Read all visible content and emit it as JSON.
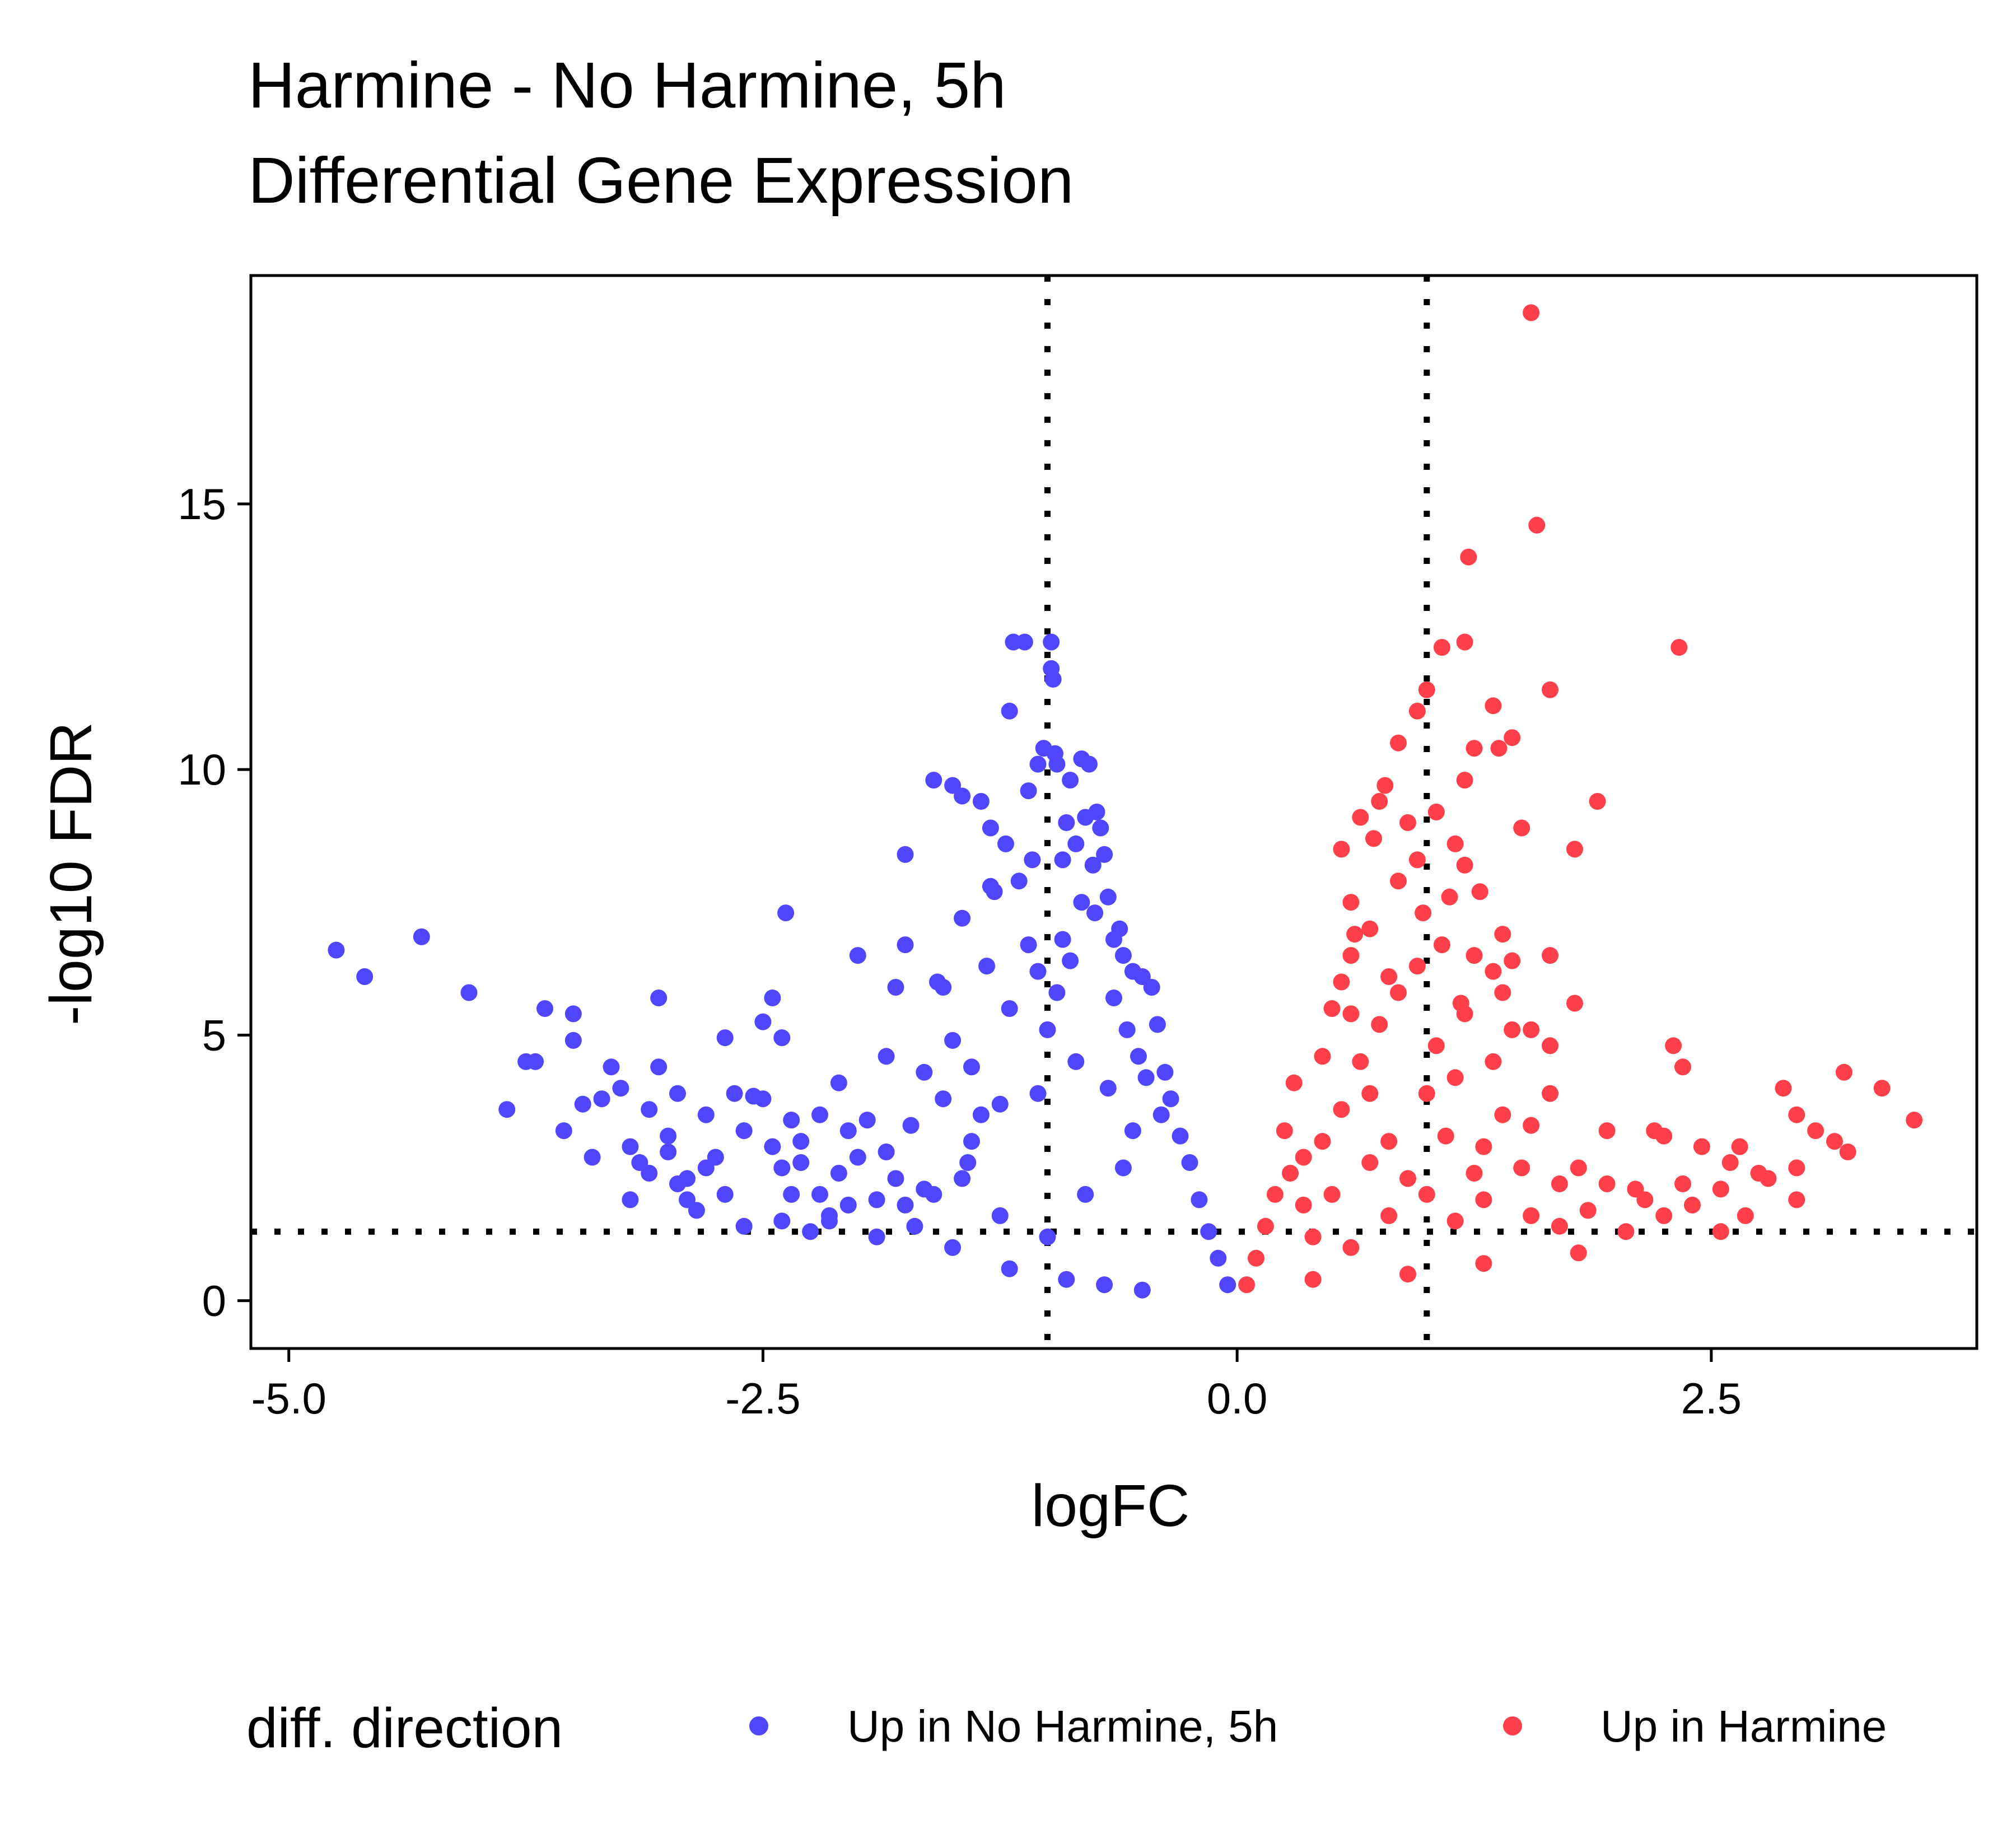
{
  "chart_data": {
    "type": "scatter",
    "title": [
      "Harmine - No Harmine, 5h",
      "Differential Gene Expression"
    ],
    "xlabel": "logFC",
    "ylabel": "-log10 FDR",
    "xlim": [
      -5.2,
      3.9
    ],
    "ylim": [
      -0.9,
      19.3
    ],
    "x_ticks": [
      -5.0,
      -2.5,
      0.0,
      2.5
    ],
    "x_tick_labels": [
      "-5.0",
      "-2.5",
      "0.0",
      "2.5"
    ],
    "y_ticks": [
      0,
      5,
      10,
      15
    ],
    "y_tick_labels": [
      "0",
      "5",
      "10",
      "15"
    ],
    "grid": false,
    "reference_lines": {
      "vertical": [
        -1,
        1
      ],
      "horizontal": [
        1.3
      ],
      "style": "dotted"
    },
    "legend": {
      "title": "diff. direction",
      "position": "bottom",
      "entries": [
        "Up in No Harmine, 5h",
        "Up in Harmine"
      ]
    },
    "colors": {
      "Up in No Harmine, 5h": "#5046ff",
      "Up in Harmine": "#ff3f4a"
    },
    "series": [
      {
        "name": "Up in No Harmine, 5h",
        "points": [
          [
            -4.75,
            6.6
          ],
          [
            -4.6,
            6.1
          ],
          [
            -4.3,
            6.85
          ],
          [
            -4.05,
            5.8
          ],
          [
            -3.85,
            3.6
          ],
          [
            -3.75,
            4.5
          ],
          [
            -3.7,
            4.5
          ],
          [
            -3.65,
            5.5
          ],
          [
            -3.55,
            3.2
          ],
          [
            -3.5,
            4.9
          ],
          [
            -3.5,
            5.4
          ],
          [
            -3.45,
            3.7
          ],
          [
            -3.4,
            2.7
          ],
          [
            -3.35,
            3.8
          ],
          [
            -3.3,
            4.4
          ],
          [
            -3.25,
            4.0
          ],
          [
            -3.2,
            1.9
          ],
          [
            -3.15,
            2.6
          ],
          [
            -3.1,
            3.6
          ],
          [
            -3.1,
            2.4
          ],
          [
            -3.05,
            5.7
          ],
          [
            -3.05,
            4.4
          ],
          [
            -3.0,
            3.1
          ],
          [
            -3.0,
            2.8
          ],
          [
            -2.95,
            3.9
          ],
          [
            -2.95,
            2.2
          ],
          [
            -2.9,
            1.9
          ],
          [
            -2.9,
            2.3
          ],
          [
            -2.85,
            1.7
          ],
          [
            -2.8,
            3.5
          ],
          [
            -2.75,
            2.7
          ],
          [
            -2.7,
            4.95
          ],
          [
            -2.65,
            3.9
          ],
          [
            -2.6,
            3.2
          ],
          [
            -2.55,
            3.85
          ],
          [
            -2.5,
            3.8
          ],
          [
            -2.5,
            5.25
          ],
          [
            -2.45,
            5.7
          ],
          [
            -2.45,
            2.9
          ],
          [
            -2.4,
            1.5
          ],
          [
            -2.4,
            2.5
          ],
          [
            -2.38,
            7.3
          ],
          [
            -2.4,
            4.95
          ],
          [
            -2.35,
            3.4
          ],
          [
            -2.35,
            2.0
          ],
          [
            -2.3,
            2.6
          ],
          [
            -2.3,
            3.0
          ],
          [
            -2.25,
            1.3
          ],
          [
            -2.2,
            2.0
          ],
          [
            -2.2,
            3.5
          ],
          [
            -2.15,
            1.6
          ],
          [
            -2.1,
            2.4
          ],
          [
            -2.1,
            4.1
          ],
          [
            -2.05,
            3.2
          ],
          [
            -2.05,
            1.8
          ],
          [
            -2.0,
            2.7
          ],
          [
            -2.0,
            6.5
          ],
          [
            -1.95,
            3.4
          ],
          [
            -1.9,
            1.9
          ],
          [
            -1.85,
            4.6
          ],
          [
            -1.85,
            2.8
          ],
          [
            -1.8,
            5.9
          ],
          [
            -1.8,
            2.3
          ],
          [
            -1.75,
            6.7
          ],
          [
            -1.75,
            8.4
          ],
          [
            -1.72,
            3.3
          ],
          [
            -1.7,
            1.4
          ],
          [
            -1.65,
            4.3
          ],
          [
            -1.65,
            2.1
          ],
          [
            -1.6,
            9.8
          ],
          [
            -1.58,
            6.0
          ],
          [
            -1.55,
            5.9
          ],
          [
            -1.55,
            3.8
          ],
          [
            -1.5,
            9.7
          ],
          [
            -1.5,
            4.9
          ],
          [
            -1.45,
            9.5
          ],
          [
            -1.45,
            7.2
          ],
          [
            -1.42,
            2.6
          ],
          [
            -1.4,
            3.0
          ],
          [
            -1.4,
            4.4
          ],
          [
            -1.35,
            9.4
          ],
          [
            -1.32,
            6.3
          ],
          [
            -1.3,
            8.9
          ],
          [
            -1.28,
            7.7
          ],
          [
            -1.25,
            3.7
          ],
          [
            -1.25,
            1.6
          ],
          [
            -1.22,
            8.6
          ],
          [
            -1.2,
            11.1
          ],
          [
            -1.2,
            5.5
          ],
          [
            -1.18,
            12.4
          ],
          [
            -1.15,
            7.9
          ],
          [
            -1.12,
            12.4
          ],
          [
            -1.1,
            9.6
          ],
          [
            -1.08,
            8.3
          ],
          [
            -1.05,
            10.1
          ],
          [
            -1.05,
            6.2
          ],
          [
            -1.02,
            10.4
          ],
          [
            -1.0,
            5.1
          ],
          [
            -0.98,
            12.4
          ],
          [
            -0.98,
            11.9
          ],
          [
            -0.97,
            11.7
          ],
          [
            -0.96,
            10.3
          ],
          [
            -0.95,
            10.1
          ],
          [
            -0.92,
            6.8
          ],
          [
            -0.92,
            8.3
          ],
          [
            -0.9,
            9.0
          ],
          [
            -0.88,
            9.8
          ],
          [
            -0.85,
            8.6
          ],
          [
            -0.82,
            7.5
          ],
          [
            -0.82,
            10.2
          ],
          [
            -0.8,
            9.1
          ],
          [
            -0.78,
            10.1
          ],
          [
            -0.76,
            8.2
          ],
          [
            -0.74,
            9.2
          ],
          [
            -0.72,
            8.9
          ],
          [
            -0.7,
            8.4
          ],
          [
            -0.68,
            7.6
          ],
          [
            -0.65,
            6.8
          ],
          [
            -0.62,
            7.0
          ],
          [
            -0.6,
            6.5
          ],
          [
            -0.55,
            6.2
          ],
          [
            -0.5,
            6.1
          ],
          [
            -0.45,
            5.9
          ],
          [
            -0.42,
            5.2
          ],
          [
            -0.38,
            4.3
          ],
          [
            -0.35,
            3.8
          ],
          [
            -0.3,
            3.1
          ],
          [
            -0.25,
            2.6
          ],
          [
            -0.2,
            1.9
          ],
          [
            -0.15,
            1.3
          ],
          [
            -0.1,
            0.8
          ],
          [
            -0.05,
            0.3
          ],
          [
            -1.3,
            7.8
          ],
          [
            -1.1,
            6.7
          ],
          [
            -0.95,
            5.8
          ],
          [
            -0.88,
            6.4
          ],
          [
            -0.75,
            7.3
          ],
          [
            -0.65,
            5.7
          ],
          [
            -0.58,
            5.1
          ],
          [
            -0.52,
            4.6
          ],
          [
            -0.48,
            4.2
          ],
          [
            -0.4,
            3.5
          ],
          [
            -1.6,
            2.0
          ],
          [
            -1.9,
            1.2
          ],
          [
            -2.6,
            1.4
          ],
          [
            -0.9,
            0.4
          ],
          [
            -0.7,
            0.3
          ],
          [
            -0.5,
            0.2
          ],
          [
            -1.2,
            0.6
          ],
          [
            -1.5,
            1.0
          ],
          [
            -1.75,
            1.8
          ],
          [
            -1.0,
            1.2
          ],
          [
            -0.8,
            2.0
          ],
          [
            -0.6,
            2.5
          ],
          [
            -1.35,
            3.5
          ],
          [
            -1.05,
            3.9
          ],
          [
            -0.85,
            4.5
          ],
          [
            -0.68,
            4.0
          ],
          [
            -0.55,
            3.2
          ],
          [
            -2.8,
            2.5
          ],
          [
            -3.2,
            2.9
          ],
          [
            -2.7,
            2.0
          ],
          [
            -2.15,
            1.5
          ],
          [
            -1.45,
            2.3
          ]
        ]
      },
      {
        "name": "Up in Harmine",
        "points": [
          [
            1.55,
            18.6
          ],
          [
            1.58,
            14.6
          ],
          [
            1.22,
            14.0
          ],
          [
            2.33,
            12.3
          ],
          [
            1.2,
            12.4
          ],
          [
            1.08,
            12.3
          ],
          [
            1.65,
            11.5
          ],
          [
            1.0,
            11.5
          ],
          [
            0.95,
            11.1
          ],
          [
            1.35,
            11.2
          ],
          [
            1.45,
            10.6
          ],
          [
            1.38,
            10.4
          ],
          [
            1.25,
            10.4
          ],
          [
            0.85,
            10.5
          ],
          [
            1.2,
            9.8
          ],
          [
            1.9,
            9.4
          ],
          [
            0.78,
            9.7
          ],
          [
            0.75,
            9.4
          ],
          [
            0.65,
            9.1
          ],
          [
            1.05,
            9.2
          ],
          [
            1.15,
            8.6
          ],
          [
            1.5,
            8.9
          ],
          [
            0.9,
            9.0
          ],
          [
            0.55,
            8.5
          ],
          [
            1.78,
            8.5
          ],
          [
            1.2,
            8.2
          ],
          [
            0.72,
            8.7
          ],
          [
            0.95,
            8.3
          ],
          [
            1.28,
            7.7
          ],
          [
            1.12,
            7.6
          ],
          [
            0.6,
            7.5
          ],
          [
            0.85,
            7.9
          ],
          [
            1.4,
            6.9
          ],
          [
            1.65,
            6.5
          ],
          [
            1.08,
            6.7
          ],
          [
            0.7,
            7.0
          ],
          [
            1.45,
            6.4
          ],
          [
            1.25,
            6.5
          ],
          [
            0.8,
            6.1
          ],
          [
            1.78,
            5.6
          ],
          [
            1.4,
            5.8
          ],
          [
            1.55,
            5.1
          ],
          [
            1.2,
            5.4
          ],
          [
            0.55,
            6.0
          ],
          [
            1.45,
            5.1
          ],
          [
            2.3,
            4.8
          ],
          [
            2.35,
            4.4
          ],
          [
            1.65,
            4.8
          ],
          [
            1.35,
            4.5
          ],
          [
            1.15,
            4.2
          ],
          [
            3.2,
            4.3
          ],
          [
            3.4,
            4.0
          ],
          [
            3.57,
            3.4
          ],
          [
            2.88,
            4.0
          ],
          [
            1.65,
            3.9
          ],
          [
            1.4,
            3.5
          ],
          [
            1.55,
            3.3
          ],
          [
            0.45,
            4.6
          ],
          [
            0.6,
            5.4
          ],
          [
            0.3,
            4.1
          ],
          [
            0.25,
            3.2
          ],
          [
            0.35,
            2.7
          ],
          [
            0.2,
            2.0
          ],
          [
            0.15,
            1.4
          ],
          [
            0.1,
            0.8
          ],
          [
            0.05,
            0.3
          ],
          [
            1.0,
            3.9
          ],
          [
            1.1,
            3.1
          ],
          [
            1.3,
            2.9
          ],
          [
            1.5,
            2.5
          ],
          [
            1.7,
            2.2
          ],
          [
            1.8,
            2.5
          ],
          [
            1.95,
            3.2
          ],
          [
            2.2,
            3.2
          ],
          [
            2.25,
            3.1
          ],
          [
            2.45,
            2.9
          ],
          [
            2.65,
            2.9
          ],
          [
            2.75,
            2.4
          ],
          [
            2.8,
            2.3
          ],
          [
            2.95,
            3.5
          ],
          [
            3.05,
            3.2
          ],
          [
            3.15,
            3.0
          ],
          [
            3.22,
            2.8
          ],
          [
            2.95,
            2.5
          ],
          [
            2.95,
            1.9
          ],
          [
            2.68,
            1.6
          ],
          [
            2.6,
            2.6
          ],
          [
            2.55,
            2.1
          ],
          [
            2.4,
            1.8
          ],
          [
            2.25,
            1.6
          ],
          [
            2.1,
            2.1
          ],
          [
            1.95,
            2.2
          ],
          [
            1.85,
            1.7
          ],
          [
            1.7,
            1.4
          ],
          [
            2.05,
            1.3
          ],
          [
            2.55,
            1.3
          ],
          [
            1.55,
            1.6
          ],
          [
            1.3,
            1.9
          ],
          [
            1.25,
            2.4
          ],
          [
            0.9,
            2.3
          ],
          [
            0.8,
            1.6
          ],
          [
            0.6,
            1.0
          ],
          [
            0.4,
            0.4
          ],
          [
            0.9,
            0.5
          ],
          [
            1.3,
            0.7
          ],
          [
            1.8,
            0.9
          ],
          [
            0.5,
            2.0
          ],
          [
            0.45,
            3.0
          ],
          [
            0.55,
            3.6
          ],
          [
            0.65,
            4.5
          ],
          [
            0.75,
            5.2
          ],
          [
            0.85,
            5.8
          ],
          [
            0.95,
            6.3
          ],
          [
            0.6,
            6.5
          ],
          [
            0.5,
            5.5
          ],
          [
            0.7,
            3.9
          ],
          [
            0.8,
            3.0
          ],
          [
            1.0,
            2.0
          ],
          [
            1.15,
            1.5
          ],
          [
            0.35,
            1.8
          ],
          [
            0.28,
            2.4
          ],
          [
            0.4,
            1.2
          ],
          [
            0.7,
            2.6
          ],
          [
            1.05,
            4.8
          ],
          [
            1.18,
            5.6
          ],
          [
            1.35,
            6.2
          ],
          [
            0.98,
            7.3
          ],
          [
            0.62,
            6.9
          ],
          [
            2.15,
            1.9
          ],
          [
            2.35,
            2.2
          ]
        ]
      }
    ]
  }
}
